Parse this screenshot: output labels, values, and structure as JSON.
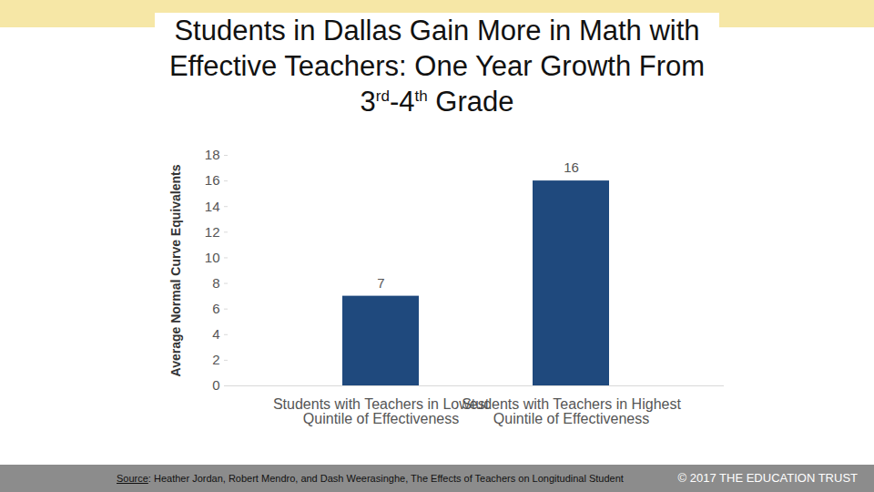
{
  "chart_data": {
    "type": "bar",
    "title": "Students in Dallas Gain More in Math with Effective Teachers: One Year Growth From 3rd-4th Grade",
    "y_label": "Average Normal Curve Equivalents",
    "categories": [
      "Students with Teachers in Lowest Quintile of Effectiveness",
      "Students with Teachers in Highest Quintile of Effectiveness"
    ],
    "values": [
      7,
      16
    ],
    "color": "#1f497d",
    "ylim": [
      0,
      18
    ],
    "yticks": [
      0,
      2,
      4,
      6,
      8,
      10,
      12,
      14,
      16,
      18
    ],
    "grid": false,
    "data_labels": true,
    "source": "Source: Heather Jordan, Robert Mendro, and Dash Weerasinghe, The Effects of Teachers on Longitudinal Student",
    "copyright": "© 2017 THE EDUCATION TRUST"
  }
}
